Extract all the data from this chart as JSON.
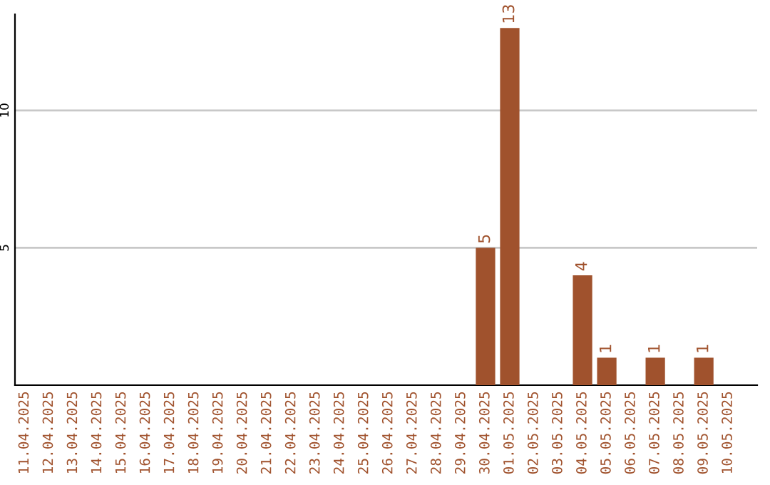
{
  "chart_data": {
    "type": "bar",
    "categories": [
      "11.04.2025",
      "12.04.2025",
      "13.04.2025",
      "14.04.2025",
      "15.04.2025",
      "16.04.2025",
      "17.04.2025",
      "18.04.2025",
      "19.04.2025",
      "20.04.2025",
      "21.04.2025",
      "22.04.2025",
      "23.04.2025",
      "24.04.2025",
      "25.04.2025",
      "26.04.2025",
      "27.04.2025",
      "28.04.2025",
      "29.04.2025",
      "30.04.2025",
      "01.05.2025",
      "02.05.2025",
      "03.05.2025",
      "04.05.2025",
      "05.05.2025",
      "06.05.2025",
      "07.05.2025",
      "08.05.2025",
      "09.05.2025",
      "10.05.2025"
    ],
    "values": [
      0,
      0,
      0,
      0,
      0,
      0,
      0,
      0,
      0,
      0,
      0,
      0,
      0,
      0,
      0,
      0,
      0,
      0,
      0,
      5,
      13,
      0,
      0,
      4,
      1,
      0,
      1,
      0,
      1,
      0
    ],
    "value_labels": [
      null,
      null,
      null,
      null,
      null,
      null,
      null,
      null,
      null,
      null,
      null,
      null,
      null,
      null,
      null,
      null,
      null,
      null,
      null,
      "5",
      "13",
      null,
      null,
      "4",
      "1",
      null,
      "1",
      null,
      "1",
      null
    ],
    "color": "#a0522d",
    "ylim": [
      0,
      13.5
    ],
    "yticks": [
      5,
      10
    ],
    "grid": "y"
  }
}
